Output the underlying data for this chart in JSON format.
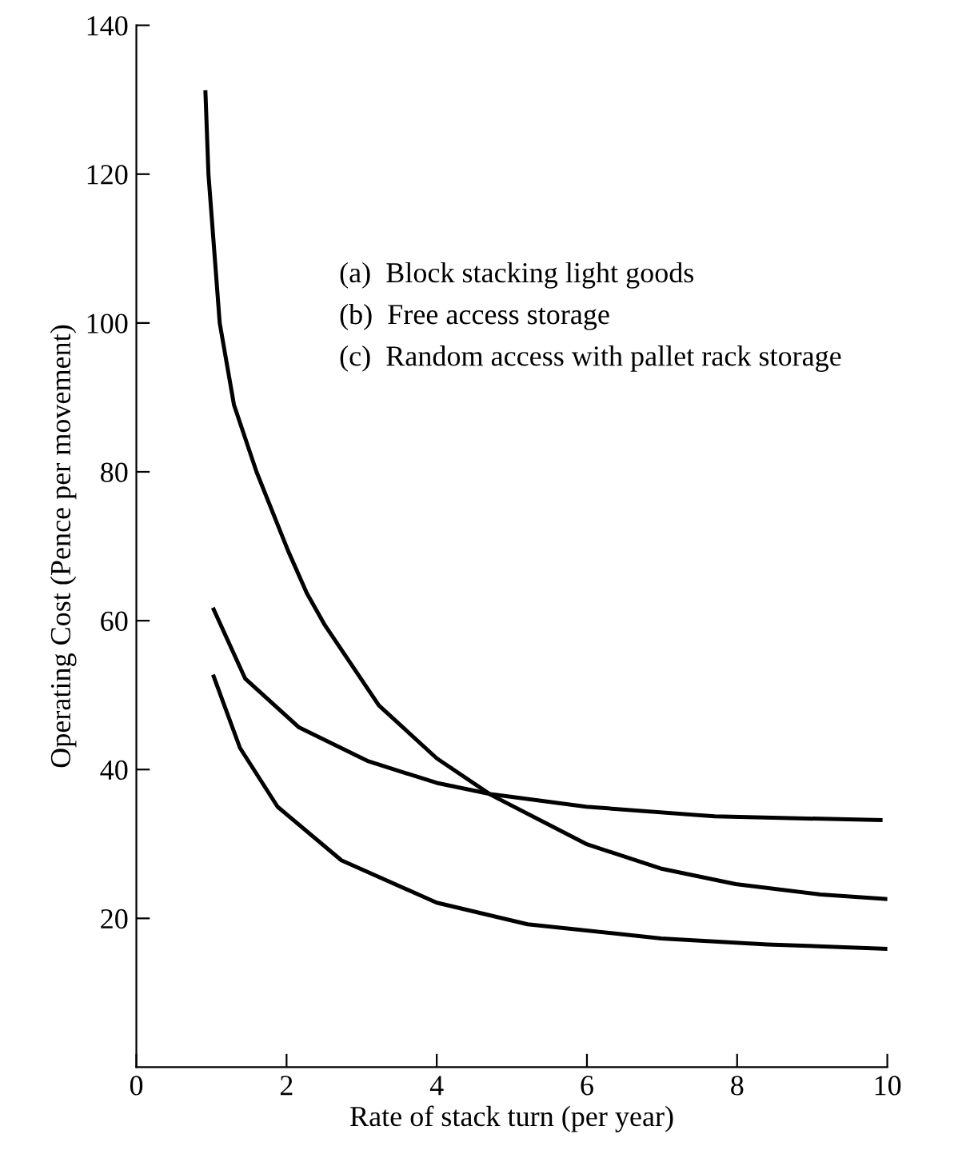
{
  "chart_data": {
    "type": "line",
    "xlabel": "Rate of stack turn (per year)",
    "ylabel": "Operating Cost (Pence per movement)",
    "annotations": [
      "(a)  Block stacking light goods",
      "(b)  Free access storage",
      "(c)  Random access with pallet rack storage"
    ],
    "series": [
      {
        "color": "#000000",
        "x": [
          0.92,
          0.96,
          1.11,
          1.3,
          1.6,
          2.02,
          2.27,
          2.51,
          3.23,
          4.0,
          4.72,
          5.99,
          6.98,
          7.98,
          9.11,
          10
        ],
        "values": [
          131,
          120,
          100,
          89,
          80,
          69.4,
          63.7,
          59.4,
          48.6,
          41.5,
          36.6,
          30.0,
          26.7,
          24.6,
          23.2,
          22.6
        ]
      },
      {
        "color": "#000000",
        "x": [
          1.03,
          1.45,
          2.16,
          3.09,
          4.0,
          4.72,
          5.99,
          7.7,
          9.91
        ],
        "values": [
          61.5,
          52.2,
          45.7,
          41.1,
          38.2,
          36.7,
          35.0,
          33.7,
          33.2
        ]
      },
      {
        "color": "#000000",
        "x": [
          1.03,
          1.38,
          1.88,
          2.73,
          4.0,
          5.21,
          6.99,
          8.4,
          10
        ],
        "values": [
          52.5,
          42.9,
          35.0,
          27.8,
          22.1,
          19.2,
          17.3,
          16.5,
          15.9
        ]
      }
    ],
    "xlim": [
      0,
      10
    ],
    "ylim": [
      0,
      140
    ],
    "xticks": [
      0,
      2,
      4,
      6,
      8,
      10
    ],
    "yticks": [
      20,
      40,
      60,
      80,
      100,
      120,
      140
    ],
    "grid": false,
    "legend": false,
    "marker": "none",
    "line_style": "solid"
  }
}
